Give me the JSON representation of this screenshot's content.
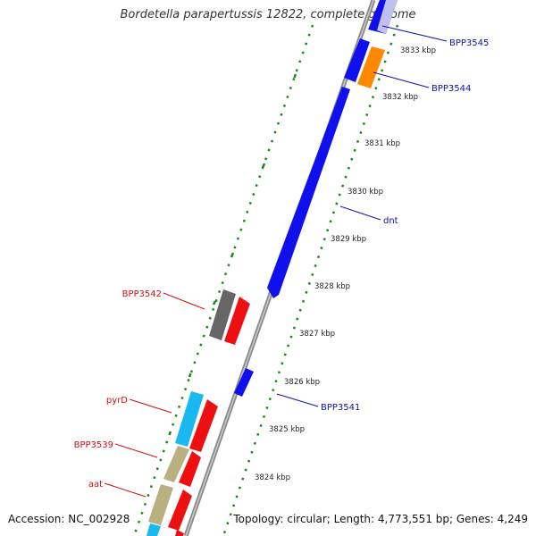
{
  "title": "Bordetella parapertussis 12822, complete genome",
  "footer": {
    "accession": "Accession: NC_002928",
    "summary": "Topology: circular; Length: 4,773,551 bp; Genes: 4,249"
  },
  "colors": {
    "forward_gene": "#1010ee",
    "reverse_gene": "#ee1010",
    "gene_label_forward": "#1010aa",
    "gene_label_reverse": "#cc1111",
    "gray_gene": "#666666",
    "orange_gene": "#ff8800",
    "cyan_gene": "#19b8f0",
    "khaki_gene": "#b8b080",
    "backbone": "#888888",
    "tick": "#1a8a1a"
  },
  "scale": {
    "labels": [
      "3833 kbp",
      "3832 kbp",
      "3831 kbp",
      "3830 kbp",
      "3829 kbp",
      "3828 kbp",
      "3827 kbp",
      "3826 kbp",
      "3825 kbp",
      "3824 kbp"
    ]
  },
  "gene_labels": {
    "BPP3545": "BPP3545",
    "BPP3544": "BPP3544",
    "dnt": "dnt",
    "BPP3542": "BPP3542",
    "BPP3541": "BPP3541",
    "pyrD": "pyrD",
    "BPP3539": "BPP3539",
    "aat": "aat"
  }
}
